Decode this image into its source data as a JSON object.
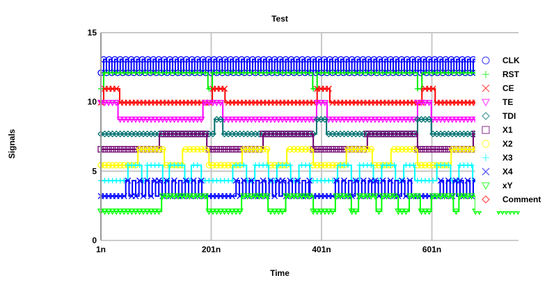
{
  "chart_data": {
    "type": "line",
    "title": "Test",
    "xlabel": "Time",
    "ylabel": "Signals",
    "xlim": [
      1,
      758
    ],
    "ylim": [
      0,
      15
    ],
    "x_ticks": [
      {
        "value": 1,
        "label": "1n"
      },
      {
        "value": 201,
        "label": "201n"
      },
      {
        "value": 401,
        "label": "401n"
      },
      {
        "value": 601,
        "label": "601n"
      }
    ],
    "y_ticks": [
      {
        "value": 0,
        "label": "0"
      },
      {
        "value": 5,
        "label": "5"
      },
      {
        "value": 10,
        "label": "10"
      },
      {
        "value": 15,
        "label": "15"
      }
    ],
    "grid": true,
    "legend_position": "right",
    "series": [
      {
        "name": "CLK",
        "color": "#0000ff",
        "marker": "circle",
        "low": 12.1,
        "high": 13.07,
        "toggle_ranges": [
          [
            1,
            758
          ]
        ],
        "half_period": 5
      },
      {
        "name": "RST",
        "color": "#00ee00",
        "marker": "plus",
        "low": 10.95,
        "high": 12.1,
        "initial": "high",
        "low_intervals": [
          [
            1,
            6
          ],
          [
            195,
            203
          ],
          [
            385,
            393
          ],
          [
            575,
            583
          ]
        ]
      },
      {
        "name": "CE",
        "color": "#ff0000",
        "marker": "x",
        "low": 9.95,
        "high": 10.95,
        "high_intervals": [
          [
            6,
            35
          ],
          [
            203,
            226
          ],
          [
            393,
            416
          ],
          [
            583,
            607
          ]
        ]
      },
      {
        "name": "TE",
        "color": "#ff00ff",
        "marker": "triangle",
        "low": 8.74,
        "high": 9.95,
        "high_intervals": [
          [
            1,
            32
          ],
          [
            186,
            222
          ],
          [
            392,
            411
          ],
          [
            575,
            600
          ]
        ]
      },
      {
        "name": "TDI",
        "color": "#007070",
        "marker": "diamond",
        "low": 7.69,
        "high": 8.74,
        "high_intervals": [
          [
            207,
            222
          ],
          [
            392,
            410
          ],
          [
            575,
            600
          ]
        ]
      },
      {
        "name": "X1",
        "color": "#700070",
        "marker": "square",
        "low": 6.58,
        "high": 7.69,
        "high_intervals": [
          [
            107,
            193
          ],
          [
            295,
            386
          ],
          [
            484,
            575
          ],
          [
            676,
            758
          ]
        ]
      },
      {
        "name": "X2",
        "color": "#ffff00",
        "marker": "circle",
        "low": 5.43,
        "high": 6.58,
        "high_intervals": [
          [
            68,
            116
          ],
          [
            149,
            197
          ],
          [
            257,
            304
          ],
          [
            338,
            386
          ],
          [
            446,
            493
          ],
          [
            527,
            575
          ],
          [
            636,
            683
          ]
        ]
      },
      {
        "name": "X3",
        "color": "#00ffff",
        "marker": "plus",
        "low": 4.32,
        "high": 5.43,
        "high_intervals": [
          [
            50,
            75
          ],
          [
            85,
            113
          ],
          [
            125,
            153
          ],
          [
            165,
            183
          ],
          [
            240,
            265
          ],
          [
            280,
            305
          ],
          [
            320,
            345
          ],
          [
            360,
            380
          ],
          [
            430,
            455
          ],
          [
            470,
            495
          ],
          [
            510,
            535
          ],
          [
            550,
            570
          ],
          [
            610,
            635
          ],
          [
            650,
            675
          ],
          [
            690,
            715
          ],
          [
            730,
            758
          ]
        ]
      },
      {
        "name": "X4",
        "color": "#0000ff",
        "marker": "x",
        "low": 3.2,
        "high": 4.32,
        "toggle_ranges": [
          [
            40,
            190
          ],
          [
            240,
            380
          ],
          [
            420,
            570
          ],
          [
            610,
            758
          ]
        ],
        "half_period": 6
      },
      {
        "name": "xY",
        "color": "#00ff00",
        "marker": "triangle",
        "low": 2.1,
        "high": 3.2,
        "high_intervals": [
          [
            111,
            194
          ],
          [
            256,
            304
          ],
          [
            336,
            386
          ],
          [
            426,
            455
          ],
          [
            468,
            500
          ],
          [
            510,
            540
          ],
          [
            560,
            580
          ],
          [
            600,
            640
          ],
          [
            650,
            680
          ],
          [
            690,
            720
          ]
        ]
      },
      {
        "name": "Comment",
        "color": "#ff0000",
        "marker": "diamond",
        "low": null,
        "high": null,
        "high_intervals": []
      }
    ]
  }
}
